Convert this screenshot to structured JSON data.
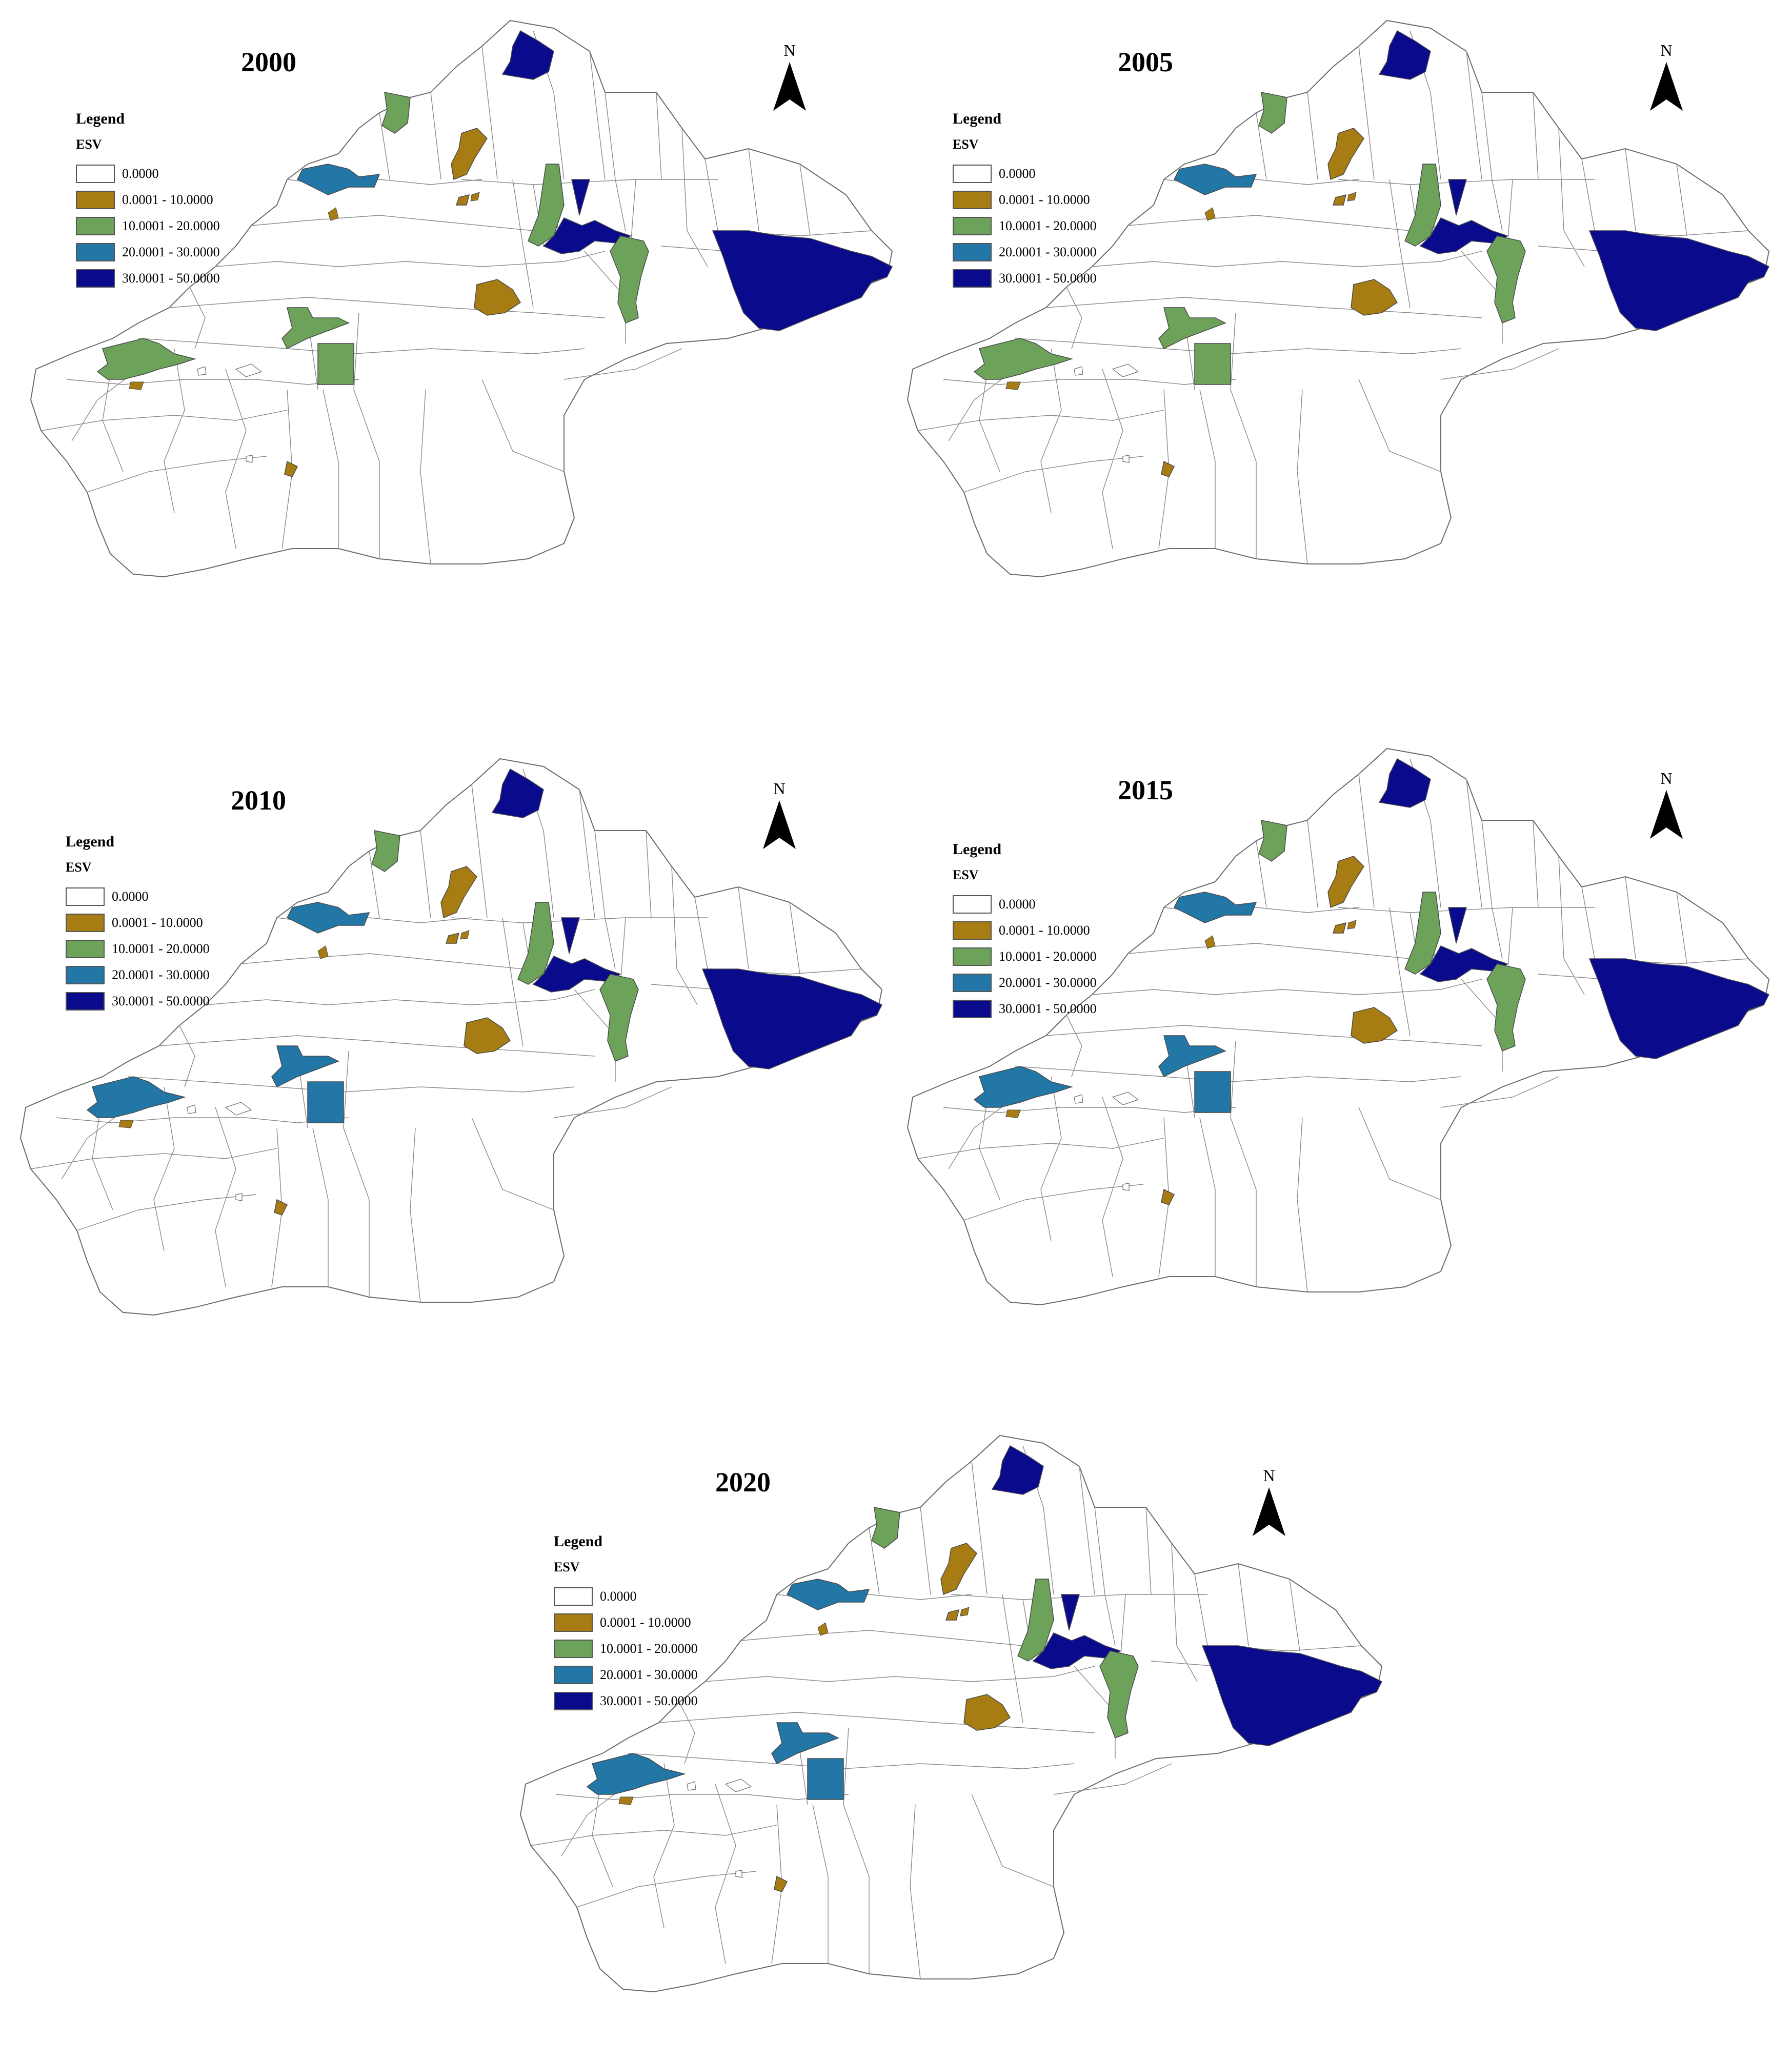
{
  "legend": {
    "title": "Legend",
    "field": "ESV",
    "classes": [
      {
        "label": "0.0000",
        "color": "#ffffff"
      },
      {
        "label": "0.0001 - 10.0000",
        "color": "#a67c13"
      },
      {
        "label": "10.0001 - 20.0000",
        "color": "#6ca25a"
      },
      {
        "label": "20.0001 - 30.0000",
        "color": "#2277a6"
      },
      {
        "label": "30.0001 - 50.0000",
        "color": "#0a0a8c"
      }
    ]
  },
  "north_arrow": {
    "letter": "N"
  },
  "panels": [
    {
      "year": "2000",
      "region_class": {
        "north_tip": 4,
        "northwest_small": 2,
        "central_north": 1,
        "west_lake": 3,
        "central_small": 1,
        "center_mid": 1,
        "central_vertical": 2,
        "central_triangle": 4,
        "central_band": 4,
        "central_south": 2,
        "east_big": 4,
        "west_arm": 2,
        "west_big": 2,
        "square": 2,
        "south_small": 1
      }
    },
    {
      "year": "2005",
      "region_class": {
        "north_tip": 4,
        "northwest_small": 2,
        "central_north": 1,
        "west_lake": 3,
        "central_small": 1,
        "center_mid": 1,
        "central_vertical": 2,
        "central_triangle": 4,
        "central_band": 4,
        "central_south": 2,
        "east_big": 4,
        "west_arm": 2,
        "west_big": 2,
        "square": 2,
        "south_small": 1
      }
    },
    {
      "year": "2010",
      "region_class": {
        "north_tip": 4,
        "northwest_small": 2,
        "central_north": 1,
        "west_lake": 3,
        "central_small": 1,
        "center_mid": 1,
        "central_vertical": 2,
        "central_triangle": 4,
        "central_band": 4,
        "central_south": 2,
        "east_big": 4,
        "west_arm": 3,
        "west_big": 3,
        "square": 3,
        "south_small": 1
      }
    },
    {
      "year": "2015",
      "region_class": {
        "north_tip": 4,
        "northwest_small": 2,
        "central_north": 1,
        "west_lake": 3,
        "central_small": 1,
        "center_mid": 1,
        "central_vertical": 2,
        "central_triangle": 4,
        "central_band": 4,
        "central_south": 2,
        "east_big": 4,
        "west_arm": 3,
        "west_big": 3,
        "square": 3,
        "south_small": 1
      }
    },
    {
      "year": "2020",
      "region_class": {
        "north_tip": 4,
        "northwest_small": 2,
        "central_north": 1,
        "west_lake": 3,
        "central_small": 1,
        "center_mid": 1,
        "central_vertical": 2,
        "central_triangle": 4,
        "central_band": 4,
        "central_south": 2,
        "east_big": 4,
        "west_arm": 3,
        "west_big": 3,
        "square": 3,
        "south_small": 1
      }
    }
  ]
}
